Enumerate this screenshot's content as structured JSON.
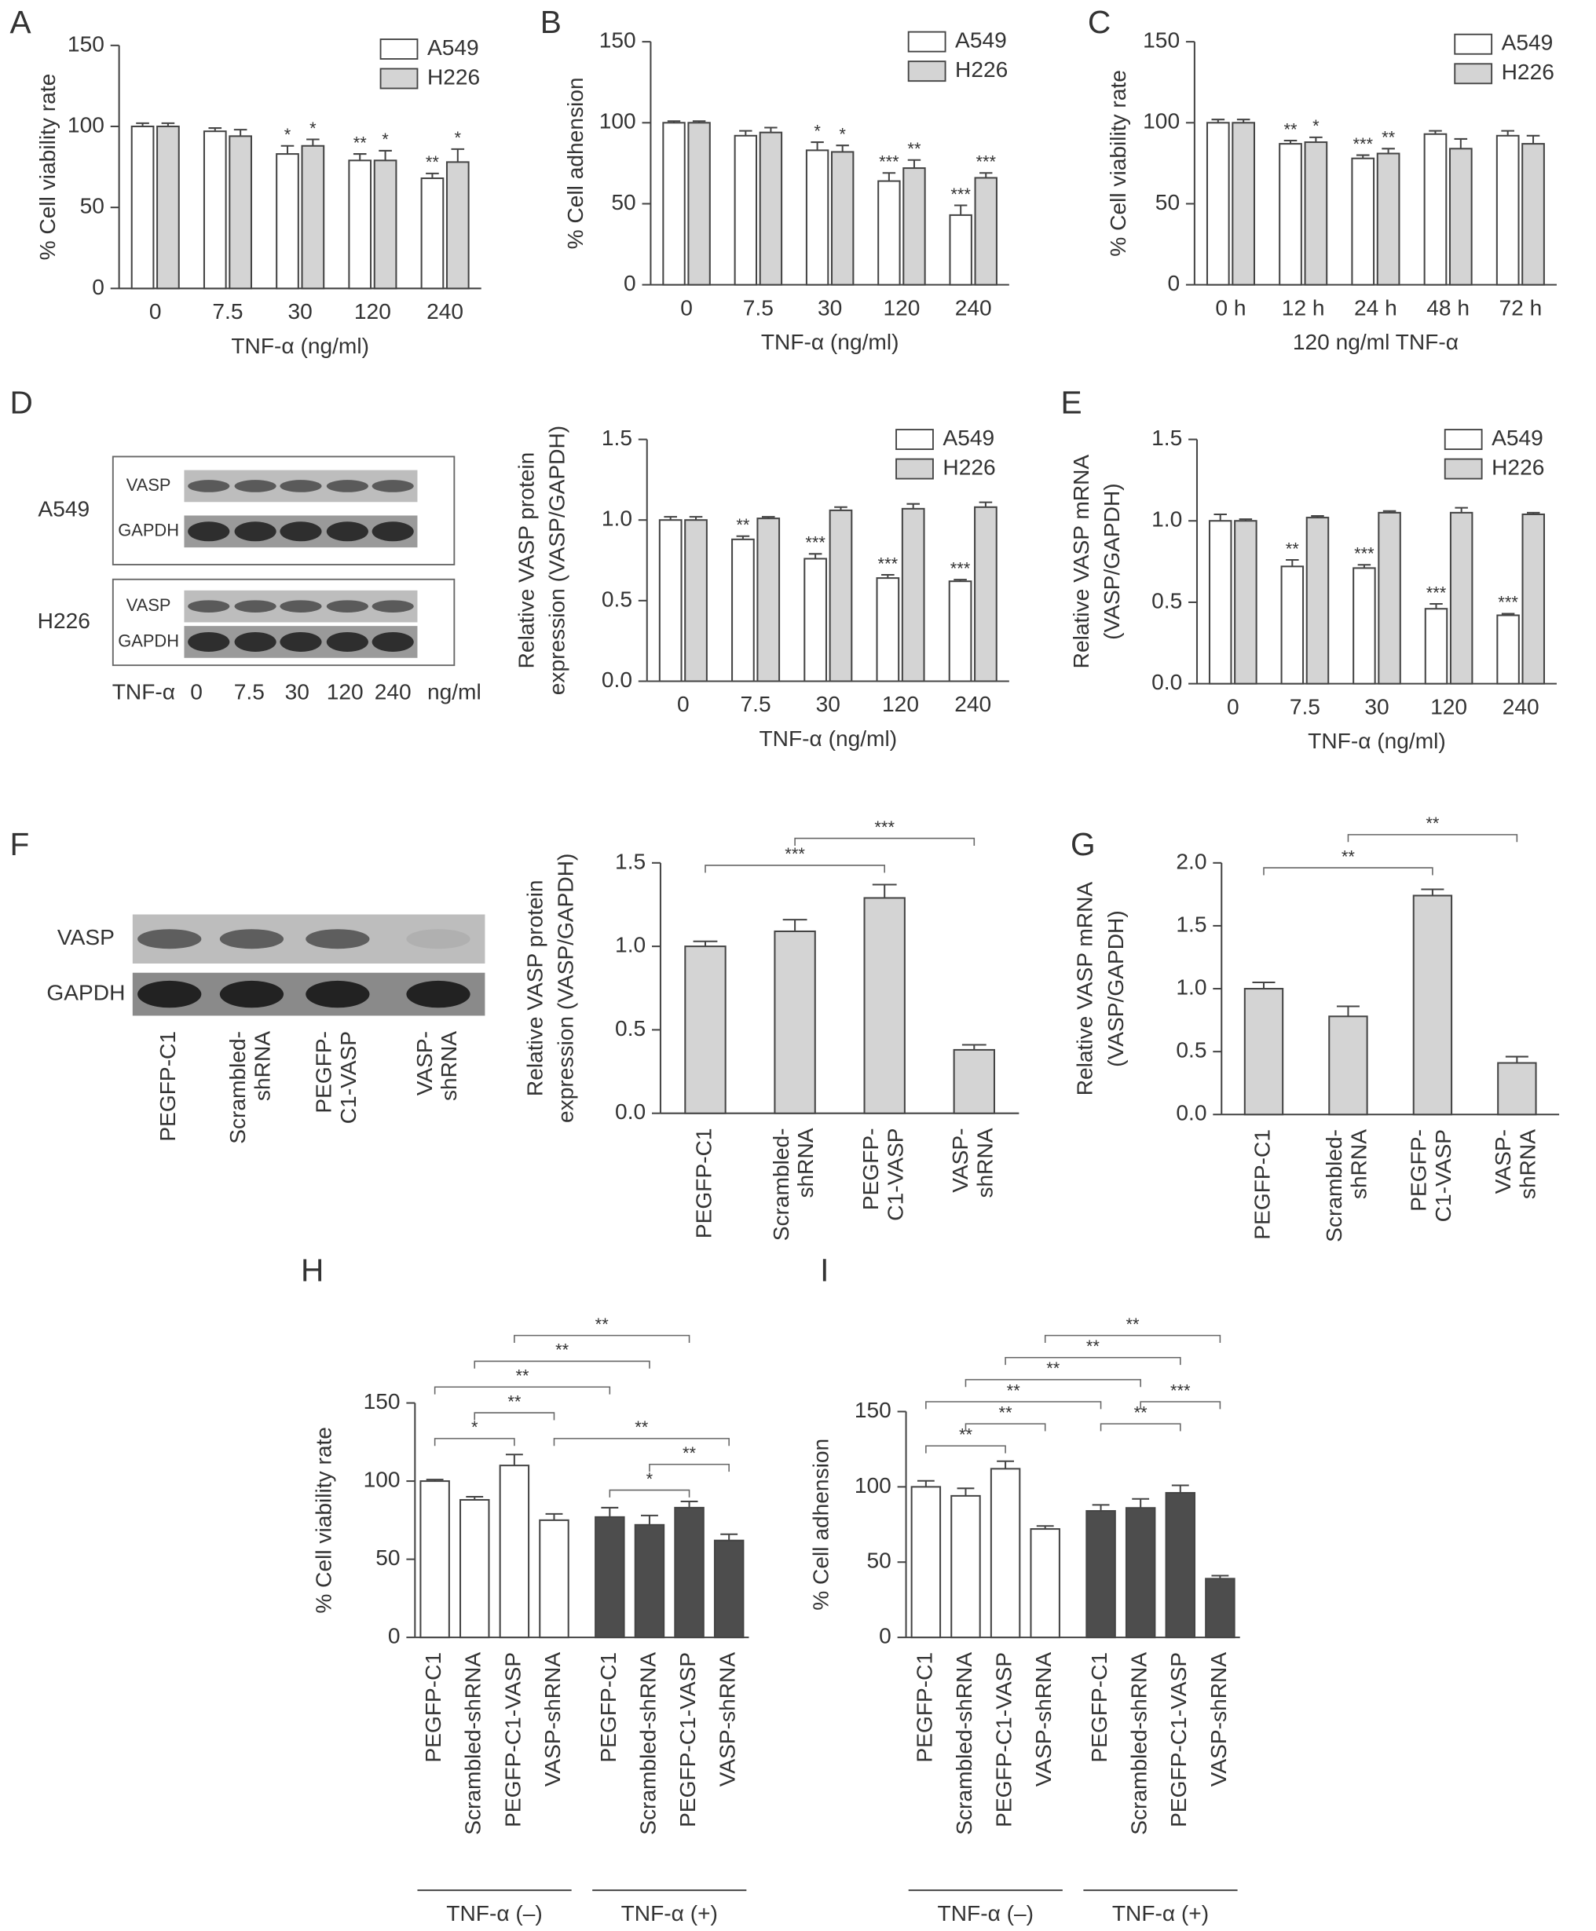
{
  "chart_data": [
    {
      "panel": "A",
      "type": "bar",
      "categories": [
        "0",
        "7.5",
        "30",
        "120",
        "240"
      ],
      "series": [
        {
          "name": "A549",
          "color": "#ffffff",
          "values": [
            100,
            97,
            83,
            79,
            68
          ],
          "errors": [
            2,
            2,
            5,
            4,
            3
          ],
          "significance": [
            null,
            null,
            "*",
            "**",
            "**"
          ]
        },
        {
          "name": "H226",
          "color": "#d4d4d4",
          "values": [
            100,
            94,
            88,
            79,
            78
          ],
          "errors": [
            2,
            4,
            4,
            6,
            8
          ],
          "significance": [
            null,
            null,
            "*",
            "*",
            "*"
          ]
        }
      ],
      "xlabel": "TNF-α (ng/ml)",
      "ylabel": [
        "% Cell viability rate"
      ],
      "ylim": [
        0,
        150
      ],
      "yticks": [
        0,
        50,
        100,
        150
      ],
      "legend": "upper right"
    },
    {
      "panel": "B",
      "type": "bar",
      "categories": [
        "0",
        "7.5",
        "30",
        "120",
        "240"
      ],
      "series": [
        {
          "name": "A549",
          "color": "#ffffff",
          "values": [
            100,
            92,
            83,
            64,
            43
          ],
          "errors": [
            1,
            3,
            5,
            5,
            6
          ],
          "significance": [
            null,
            null,
            "*",
            "***",
            "***"
          ]
        },
        {
          "name": "H226",
          "color": "#d4d4d4",
          "values": [
            100,
            94,
            82,
            72,
            66
          ],
          "errors": [
            1,
            3,
            4,
            5,
            3
          ],
          "significance": [
            null,
            null,
            "*",
            "**",
            "***"
          ]
        }
      ],
      "xlabel": "TNF-α (ng/ml)",
      "ylabel": [
        "% Cell adhension"
      ],
      "ylim": [
        0,
        150
      ],
      "yticks": [
        0,
        50,
        100,
        150
      ],
      "legend": "upper right"
    },
    {
      "panel": "C",
      "type": "bar",
      "categories": [
        "0 h",
        "12 h",
        "24 h",
        "48 h",
        "72 h"
      ],
      "series": [
        {
          "name": "A549",
          "color": "#ffffff",
          "values": [
            100,
            87,
            78,
            93,
            92
          ],
          "errors": [
            2,
            2,
            2,
            2,
            3
          ],
          "significance": [
            null,
            "**",
            "***",
            null,
            null
          ]
        },
        {
          "name": "H226",
          "color": "#d4d4d4",
          "values": [
            100,
            88,
            81,
            84,
            87
          ],
          "errors": [
            2,
            3,
            3,
            6,
            5
          ],
          "significance": [
            null,
            "*",
            "**",
            null,
            null
          ]
        }
      ],
      "xlabel": "120 ng/ml TNF-α",
      "ylabel": [
        "% Cell viability rate"
      ],
      "ylim": [
        0,
        150
      ],
      "yticks": [
        0,
        50,
        100,
        150
      ],
      "legend": "upper right"
    },
    {
      "type": "bar",
      "categories": [
        "0",
        "7.5",
        "30",
        "120",
        "240"
      ],
      "series": [
        {
          "name": "A549",
          "color": "#ffffff",
          "values": [
            1.0,
            0.88,
            0.76,
            0.64,
            0.62
          ],
          "errors": [
            0.02,
            0.02,
            0.03,
            0.02,
            0.01
          ],
          "significance": [
            null,
            "**",
            "***",
            "***",
            "***"
          ]
        },
        {
          "name": "H226",
          "color": "#d4d4d4",
          "values": [
            1.0,
            1.01,
            1.06,
            1.07,
            1.08
          ],
          "errors": [
            0.02,
            0.01,
            0.02,
            0.03,
            0.03
          ],
          "significance": [
            null,
            null,
            null,
            null,
            null
          ]
        }
      ],
      "xlabel": "TNF-α (ng/ml)",
      "ylabel": [
        "Relative VASP protein",
        "expression (VASP/GAPDH)"
      ],
      "ylim": [
        0,
        1.5
      ],
      "yticks": [
        {
          "value": 0,
          "label": "0.0"
        },
        0.5,
        {
          "value": 1,
          "label": "1.0"
        },
        1.5
      ],
      "legend": "upper right"
    },
    {
      "panel": "E",
      "type": "bar",
      "categories": [
        "0",
        "7.5",
        "30",
        "120",
        "240"
      ],
      "series": [
        {
          "name": "A549",
          "color": "#ffffff",
          "values": [
            1.0,
            0.72,
            0.71,
            0.46,
            0.42
          ],
          "errors": [
            0.04,
            0.04,
            0.02,
            0.03,
            0.01
          ],
          "significance": [
            null,
            "**",
            "***",
            "***",
            "***"
          ]
        },
        {
          "name": "H226",
          "color": "#d4d4d4",
          "values": [
            1.0,
            1.02,
            1.05,
            1.05,
            1.04
          ],
          "errors": [
            0.01,
            0.01,
            0.01,
            0.03,
            0.01
          ],
          "significance": [
            null,
            null,
            null,
            null,
            null
          ]
        }
      ],
      "xlabel": "TNF-α (ng/ml)",
      "ylabel": [
        "Relative VASP mRNA",
        "(VASP/GAPDH)"
      ],
      "ylim": [
        0,
        1.5
      ],
      "yticks": [
        {
          "value": 0,
          "label": "0.0"
        },
        0.5,
        {
          "value": 1,
          "label": "1.0"
        },
        1.5
      ],
      "legend": "upper right"
    },
    {
      "type": "bar",
      "categories": [
        [
          "PEGFP-C1"
        ],
        [
          "Scrambled-",
          "shRNA"
        ],
        [
          "PEGFP-",
          "C1-VASP"
        ],
        [
          "VASP-",
          "shRNA"
        ]
      ],
      "values": [
        1.0,
        1.09,
        1.29,
        0.38
      ],
      "errors": [
        0.03,
        0.07,
        0.08,
        0.03
      ],
      "color": "#d4d4d4",
      "brackets": [
        {
          "from": 1,
          "to": 3,
          "text": "***"
        },
        {
          "from": 0,
          "to": 2,
          "text": "***"
        }
      ],
      "ylabel": [
        "Relative VASP protein",
        "expression (VASP/GAPDH)"
      ],
      "ylim": [
        0,
        1.5
      ],
      "yticks": [
        {
          "value": 0,
          "label": "0.0"
        },
        0.5,
        {
          "value": 1,
          "label": "1.0"
        },
        1.5
      ]
    },
    {
      "panel": "G",
      "type": "bar",
      "categories": [
        [
          "PEGFP-C1"
        ],
        [
          "Scrambled-",
          "shRNA"
        ],
        [
          "PEGFP-",
          "C1-VASP"
        ],
        [
          "VASP-",
          "shRNA"
        ]
      ],
      "values": [
        1.0,
        0.78,
        1.74,
        0.41
      ],
      "errors": [
        0.05,
        0.08,
        0.05,
        0.05
      ],
      "color": "#d4d4d4",
      "brackets": [
        {
          "from": 1,
          "to": 3,
          "text": "**"
        },
        {
          "from": 0,
          "to": 2,
          "text": "**"
        }
      ],
      "ylabel": [
        "Relative VASP mRNA",
        "(VASP/GAPDH)"
      ],
      "ylim": [
        0,
        2
      ],
      "yticks": [
        {
          "value": 0,
          "label": "0.0"
        },
        0.5,
        {
          "value": 1,
          "label": "1.0"
        },
        1.5,
        {
          "value": 2,
          "label": "2.0"
        }
      ]
    },
    {
      "panel": "H",
      "type": "bar",
      "groups": [
        {
          "label": "TNF-α (–)",
          "color": "#ffffff",
          "categories": [
            "PEGFP-C1",
            "Scrambled-shRNA",
            "PEGFP-C1-VASP",
            "VASP-shRNA"
          ],
          "values": [
            100,
            88,
            110,
            75
          ],
          "errors": [
            1,
            2,
            7,
            4
          ]
        },
        {
          "label": "TNF-α (+)",
          "color": "#4d4d4d",
          "categories": [
            "PEGFP-C1",
            "Scrambled-shRNA",
            "PEGFP-C1-VASP",
            "VASP-shRNA"
          ],
          "values": [
            77,
            72,
            83,
            62
          ],
          "errors": [
            6,
            6,
            4,
            4
          ]
        }
      ],
      "brackets": [
        {
          "from": 2,
          "to": 6,
          "text": "**"
        },
        {
          "from": 1,
          "to": 5,
          "text": "**"
        },
        {
          "from": 0,
          "to": 4,
          "text": "**"
        },
        {
          "from": 1,
          "to": 3,
          "text": "**"
        },
        {
          "from": 3,
          "to": 7,
          "text": "**"
        },
        {
          "from": 0,
          "to": 2,
          "text": "*"
        },
        {
          "from": 5,
          "to": 7,
          "text": "**"
        },
        {
          "from": 4,
          "to": 6,
          "text": "*"
        }
      ],
      "ylabel": [
        "% Cell viability rate"
      ],
      "ylim": [
        0,
        150
      ],
      "yticks": [
        0,
        50,
        100,
        150
      ]
    },
    {
      "panel": "I",
      "type": "bar",
      "groups": [
        {
          "label": "TNF-α (–)",
          "color": "#ffffff",
          "categories": [
            "PEGFP-C1",
            "Scrambled-shRNA",
            "PEGFP-C1-VASP",
            "VASP-shRNA"
          ],
          "values": [
            100,
            94,
            112,
            72
          ],
          "errors": [
            4,
            5,
            5,
            2
          ]
        },
        {
          "label": "TNF-α (+)",
          "color": "#4d4d4d",
          "categories": [
            "PEGFP-C1",
            "Scrambled-shRNA",
            "PEGFP-C1-VASP",
            "VASP-shRNA"
          ],
          "values": [
            84,
            86,
            96,
            39
          ],
          "errors": [
            4,
            6,
            5,
            2
          ]
        }
      ],
      "brackets": [
        {
          "from": 3,
          "to": 7,
          "text": "**"
        },
        {
          "from": 2,
          "to": 6,
          "text": "**"
        },
        {
          "from": 1,
          "to": 5,
          "text": "**"
        },
        {
          "from": 0,
          "to": 4,
          "text": "**"
        },
        {
          "from": 1,
          "to": 3,
          "text": "**"
        },
        {
          "from": 5,
          "to": 7,
          "text": "***"
        },
        {
          "from": 0,
          "to": 2,
          "text": "**"
        },
        {
          "from": 4,
          "to": 6,
          "text": "**"
        }
      ],
      "ylabel": [
        "% Cell adhension"
      ],
      "ylim": [
        0,
        150
      ],
      "yticks": [
        0,
        50,
        100,
        150
      ]
    }
  ],
  "blots": [
    {
      "panel": "D",
      "cell_lines": [
        "A549",
        "H226"
      ],
      "proteins": [
        "VASP",
        "GAPDH"
      ],
      "treatment": "TNF-α",
      "lanes": [
        "0",
        "7.5",
        "30",
        "120",
        "240"
      ],
      "unit": "ng/ml"
    },
    {
      "panel": "F",
      "proteins": [
        "VASP",
        "GAPDH"
      ],
      "lanes": [
        [
          "PEGFP-C1"
        ],
        [
          "Scrambled-",
          "shRNA"
        ],
        [
          "PEGFP-",
          "C1-VASP"
        ],
        [
          "VASP-",
          "shRNA"
        ]
      ]
    }
  ]
}
